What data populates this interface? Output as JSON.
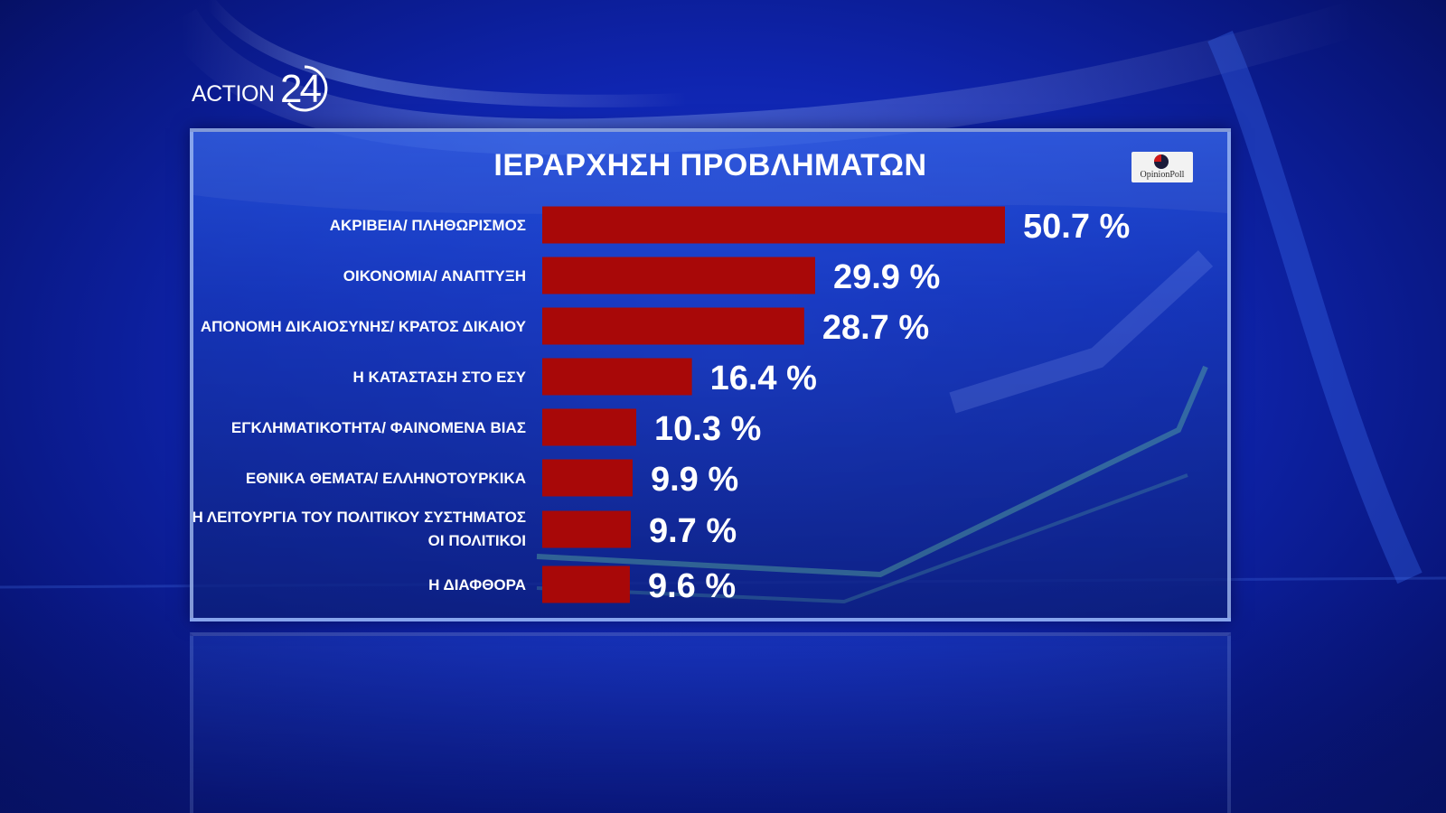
{
  "brand": {
    "logo_text": "ACTION",
    "logo_number": "24"
  },
  "source": {
    "name": "OpinionPoll"
  },
  "colors": {
    "bar": "#a80808",
    "background": "#0f25b0",
    "text": "#ffffff"
  },
  "chart_data": {
    "type": "bar",
    "orientation": "horizontal",
    "title": "ΙΕΡΑΡΧΗΣΗ ΠΡΟΒΛΗΜΑΤΩΝ",
    "unit": "%",
    "categories": [
      [
        "ΑΚΡΙΒΕΙΑ/ ΠΛΗΘΩΡΙΣΜΟΣ"
      ],
      [
        "ΟΙΚΟΝΟΜΙΑ/ ΑΝΑΠΤΥΞΗ"
      ],
      [
        "ΑΠΟΝΟΜΗ ΔΙΚΑΙΟΣΥΝΗΣ/ ΚΡΑΤΟΣ ΔΙΚΑΙΟΥ"
      ],
      [
        "Η ΚΑΤΑΣΤΑΣΗ ΣΤΟ ΕΣΥ"
      ],
      [
        "ΕΓΚΛΗΜΑΤΙΚΟΤΗΤΑ/ ΦΑΙΝΟΜΕΝΑ ΒΙΑΣ"
      ],
      [
        "ΕΘΝΙΚΑ ΘΕΜΑΤΑ/ ΕΛΛΗΝΟΤΟΥΡΚΙΚΑ"
      ],
      [
        "Η ΛΕΙΤΟΥΡΓΙΑ ΤΟΥ ΠΟΛΙΤΙΚΟΥ ΣΥΣΤΗΜΑΤΟΣ",
        "ΟΙ ΠΟΛΙΤΙΚΟΙ"
      ],
      [
        "Η ΔΙΑΦΘΟΡΑ"
      ]
    ],
    "values": [
      50.7,
      29.9,
      28.7,
      16.4,
      10.3,
      9.9,
      9.7,
      9.6
    ],
    "value_labels": [
      "50.7 %",
      "29.9 %",
      "28.7 %",
      "16.4 %",
      "10.3 %",
      "9.9 %",
      "9.7 %",
      "9.6 %"
    ],
    "xlim": [
      0,
      50.7
    ],
    "grid": false,
    "legend": "none"
  }
}
